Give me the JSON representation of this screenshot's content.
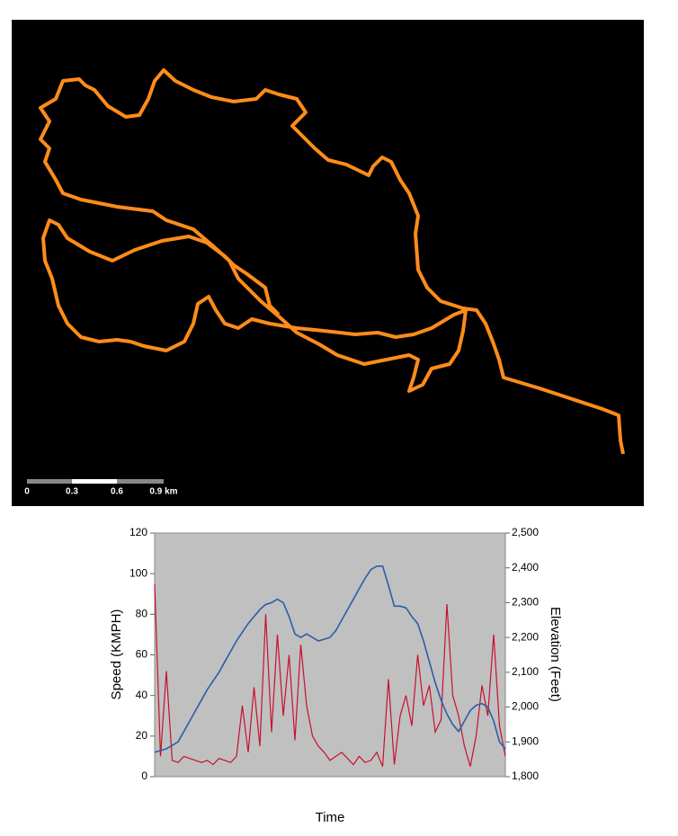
{
  "map": {
    "scale_labels": [
      "0",
      "0.3",
      "0.6",
      "0.9 km"
    ]
  },
  "chart_data": {
    "type": "line",
    "x_label": "Time",
    "y_label": "Speed (KMPH)",
    "y2_label": "Elevation (Feet)",
    "ylim": [
      0,
      120
    ],
    "yticks": [
      0,
      20,
      40,
      60,
      80,
      100,
      120
    ],
    "y2lim": [
      1800,
      2500
    ],
    "y2ticks": [
      {
        "value": 1800,
        "label": "1,800"
      },
      {
        "value": 1900,
        "label": "1,900"
      },
      {
        "value": 2000,
        "label": "2,000"
      },
      {
        "value": 2100,
        "label": "2,100"
      },
      {
        "value": 2200,
        "label": "2,200"
      },
      {
        "value": 2300,
        "label": "2,300"
      },
      {
        "value": 2400,
        "label": "2,400"
      },
      {
        "value": 2500,
        "label": "2,500"
      }
    ],
    "background": "#c0c0c0",
    "grid": false,
    "series": [
      {
        "name": "Speed",
        "color": "#c8102e",
        "axis": "y",
        "values": [
          95,
          10,
          52,
          8,
          7,
          10,
          9,
          8,
          7,
          8,
          6,
          9,
          8,
          7,
          10,
          35,
          12,
          44,
          15,
          80,
          22,
          70,
          30,
          60,
          18,
          65,
          35,
          20,
          15,
          12,
          8,
          10,
          12,
          9,
          6,
          10,
          7,
          8,
          12,
          5,
          48,
          6,
          30,
          40,
          25,
          60,
          35,
          45,
          22,
          28,
          85,
          40,
          30,
          15,
          5,
          20,
          45,
          30,
          70,
          25,
          10
        ]
      },
      {
        "name": "Elevation",
        "color": "#2a5ea8",
        "axis": "y2",
        "values": [
          1870,
          1875,
          1880,
          1890,
          1900,
          1930,
          1960,
          1990,
          2020,
          2050,
          2075,
          2100,
          2130,
          2160,
          2190,
          2215,
          2240,
          2260,
          2280,
          2295,
          2300,
          2310,
          2300,
          2260,
          2210,
          2200,
          2210,
          2200,
          2190,
          2195,
          2200,
          2220,
          2250,
          2280,
          2310,
          2340,
          2370,
          2395,
          2405,
          2405,
          2350,
          2290,
          2290,
          2285,
          2260,
          2240,
          2190,
          2130,
          2070,
          2020,
          1980,
          1950,
          1930,
          1960,
          1990,
          2005,
          2010,
          2000,
          1960,
          1900,
          1880
        ]
      }
    ]
  }
}
